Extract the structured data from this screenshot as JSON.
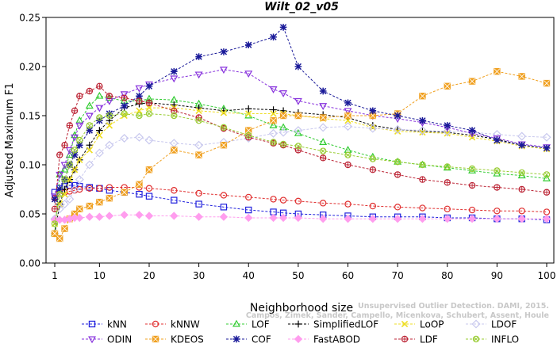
{
  "chart_data": {
    "type": "line",
    "title": "Wilt_02_v05",
    "xlabel": "Neighborhood size",
    "ylabel": "Adjusted Maximum F1",
    "xlim": [
      0,
      100
    ],
    "ylim": [
      0,
      0.25
    ],
    "xticks": [
      "1",
      "10",
      "20",
      "30",
      "40",
      "50",
      "60",
      "70",
      "80",
      "90",
      "100"
    ],
    "xtick_values": [
      1,
      10,
      20,
      30,
      40,
      50,
      60,
      70,
      80,
      90,
      100
    ],
    "yticks": [
      "0.00",
      "0.05",
      "0.10",
      "0.15",
      "0.20",
      "0.25"
    ],
    "ytick_values": [
      0,
      0.05,
      0.1,
      0.15,
      0.2,
      0.25
    ],
    "grid": false,
    "legend_position": "bottom",
    "x": [
      1,
      2,
      3,
      4,
      5,
      6,
      8,
      10,
      12,
      15,
      18,
      20,
      25,
      30,
      35,
      40,
      45,
      47,
      50,
      55,
      60,
      65,
      70,
      75,
      80,
      85,
      90,
      95,
      100
    ],
    "series": [
      {
        "name": "kNN",
        "color": "#2222dd",
        "marker": "square",
        "values": [
          0.072,
          0.076,
          0.078,
          0.079,
          0.079,
          0.078,
          0.077,
          0.076,
          0.074,
          0.072,
          0.07,
          0.068,
          0.064,
          0.06,
          0.057,
          0.054,
          0.052,
          0.051,
          0.05,
          0.049,
          0.048,
          0.047,
          0.047,
          0.047,
          0.046,
          0.046,
          0.045,
          0.045,
          0.044
        ]
      },
      {
        "name": "kNNW",
        "color": "#e03030",
        "marker": "circle",
        "values": [
          0.066,
          0.07,
          0.072,
          0.073,
          0.074,
          0.075,
          0.076,
          0.076,
          0.077,
          0.077,
          0.077,
          0.076,
          0.074,
          0.071,
          0.069,
          0.067,
          0.065,
          0.064,
          0.063,
          0.061,
          0.06,
          0.058,
          0.057,
          0.056,
          0.055,
          0.054,
          0.053,
          0.053,
          0.052
        ]
      },
      {
        "name": "LOF",
        "color": "#33cc33",
        "marker": "triangle",
        "values": [
          0.03,
          0.09,
          0.095,
          0.11,
          0.13,
          0.145,
          0.16,
          0.17,
          0.168,
          0.165,
          0.165,
          0.167,
          0.166,
          0.162,
          0.157,
          0.15,
          0.14,
          0.138,
          0.132,
          0.123,
          0.115,
          0.108,
          0.103,
          0.1,
          0.097,
          0.094,
          0.091,
          0.089,
          0.086
        ]
      },
      {
        "name": "SimplifiedLOF",
        "color": "#000000",
        "marker": "plus",
        "values": [
          0.03,
          0.06,
          0.075,
          0.085,
          0.095,
          0.105,
          0.12,
          0.135,
          0.145,
          0.158,
          0.162,
          0.163,
          0.161,
          0.158,
          0.155,
          0.157,
          0.156,
          0.155,
          0.153,
          0.151,
          0.148,
          0.14,
          0.136,
          0.134,
          0.133,
          0.13,
          0.126,
          0.12,
          0.117
        ]
      },
      {
        "name": "LoOP",
        "color": "#eedd22",
        "marker": "x",
        "values": [
          0.04,
          0.06,
          0.07,
          0.085,
          0.095,
          0.105,
          0.115,
          0.13,
          0.14,
          0.15,
          0.155,
          0.158,
          0.158,
          0.155,
          0.153,
          0.152,
          0.152,
          0.152,
          0.15,
          0.147,
          0.145,
          0.138,
          0.134,
          0.133,
          0.132,
          0.128,
          0.124,
          0.119,
          0.116
        ]
      },
      {
        "name": "LDOF",
        "color": "#c8c8ee",
        "marker": "diamond",
        "values": [
          0.045,
          0.055,
          0.06,
          0.065,
          0.075,
          0.085,
          0.1,
          0.112,
          0.12,
          0.127,
          0.128,
          0.125,
          0.122,
          0.12,
          0.123,
          0.127,
          0.132,
          0.133,
          0.135,
          0.138,
          0.139,
          0.137,
          0.136,
          0.135,
          0.134,
          0.133,
          0.131,
          0.129,
          0.128
        ]
      },
      {
        "name": "ODIN",
        "color": "#8833dd",
        "marker": "triangle-down",
        "values": [
          0.068,
          0.09,
          0.1,
          0.115,
          0.128,
          0.14,
          0.15,
          0.158,
          0.165,
          0.172,
          0.178,
          0.182,
          0.188,
          0.192,
          0.197,
          0.193,
          0.177,
          0.173,
          0.165,
          0.16,
          0.155,
          0.15,
          0.147,
          0.143,
          0.138,
          0.132,
          0.127,
          0.121,
          0.118
        ]
      },
      {
        "name": "KDEOS",
        "color": "#f0a020",
        "marker": "square-x",
        "values": [
          0.03,
          0.025,
          0.035,
          0.045,
          0.05,
          0.055,
          0.058,
          0.062,
          0.066,
          0.072,
          0.08,
          0.095,
          0.115,
          0.11,
          0.12,
          0.135,
          0.145,
          0.15,
          0.15,
          0.148,
          0.15,
          0.15,
          0.152,
          0.17,
          0.18,
          0.185,
          0.195,
          0.19,
          0.183
        ]
      },
      {
        "name": "COF",
        "color": "#1a1a99",
        "marker": "asterisk",
        "values": [
          0.065,
          0.075,
          0.085,
          0.1,
          0.11,
          0.12,
          0.135,
          0.145,
          0.152,
          0.16,
          0.17,
          0.18,
          0.195,
          0.21,
          0.215,
          0.222,
          0.23,
          0.24,
          0.2,
          0.175,
          0.163,
          0.155,
          0.15,
          0.145,
          0.14,
          0.135,
          0.125,
          0.12,
          0.117
        ]
      },
      {
        "name": "FastABOD",
        "color": "#ff9dee",
        "marker": "diamond-filled",
        "values": [
          0.044,
          0.044,
          0.044,
          0.045,
          0.046,
          0.046,
          0.047,
          0.047,
          0.048,
          0.049,
          0.049,
          0.048,
          0.048,
          0.047,
          0.047,
          0.046,
          0.046,
          0.046,
          0.046,
          0.045,
          0.045,
          0.045,
          0.045,
          0.045,
          0.045,
          0.045,
          0.045,
          0.045,
          0.045
        ]
      },
      {
        "name": "LDF",
        "color": "#bb2233",
        "marker": "circle-plus",
        "values": [
          0.055,
          0.11,
          0.12,
          0.14,
          0.155,
          0.17,
          0.175,
          0.18,
          0.17,
          0.168,
          0.165,
          0.163,
          0.155,
          0.148,
          0.137,
          0.128,
          0.122,
          0.12,
          0.115,
          0.107,
          0.1,
          0.095,
          0.09,
          0.085,
          0.082,
          0.079,
          0.077,
          0.075,
          0.072
        ]
      },
      {
        "name": "INFLO",
        "color": "#99cc33",
        "marker": "circle-x",
        "values": [
          0.04,
          0.07,
          0.085,
          0.1,
          0.115,
          0.125,
          0.14,
          0.148,
          0.15,
          0.152,
          0.15,
          0.152,
          0.15,
          0.145,
          0.138,
          0.13,
          0.123,
          0.121,
          0.119,
          0.114,
          0.11,
          0.106,
          0.103,
          0.1,
          0.098,
          0.096,
          0.094,
          0.092,
          0.09
        ]
      }
    ]
  },
  "watermark": {
    "line1": "Unsupervised Outlier Detection. DAMI, 2015.",
    "line2": "Campos, Zimek, Sander, Campello, Micenkova, Schubert, Assent, Houle"
  }
}
